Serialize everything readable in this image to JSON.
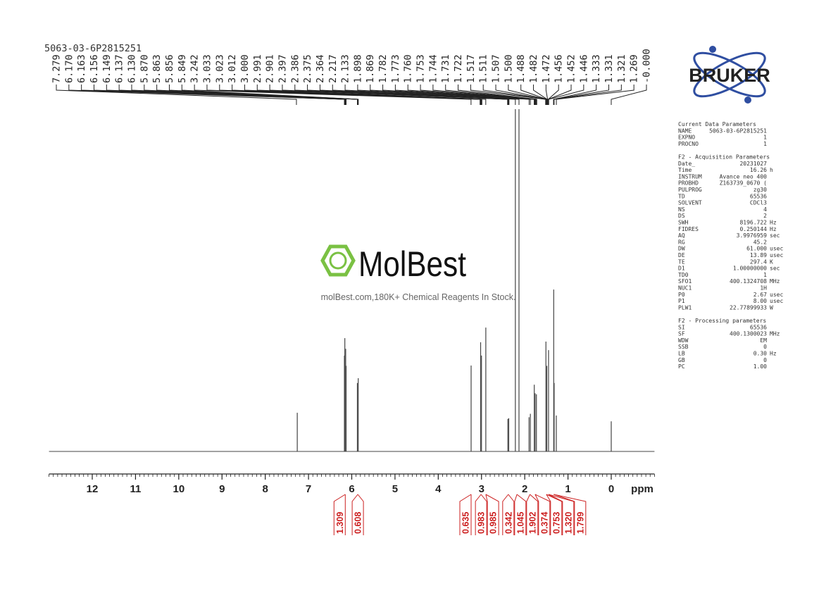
{
  "chart_data": {
    "type": "nmr",
    "title": "5063-03-6P2815251",
    "x_label": "ppm",
    "xlim": [
      13,
      -1
    ],
    "xticks": [
      12,
      11,
      10,
      9,
      8,
      7,
      6,
      5,
      4,
      3,
      2,
      1,
      0
    ],
    "xminor_step": 0.1,
    "ylim": [
      0,
      100
    ],
    "color": "#444444",
    "peaks": {
      "x": [
        7.26,
        6.17,
        6.16,
        6.14,
        6.13,
        5.87,
        5.85,
        3.24,
        3.02,
        3.0,
        2.9,
        2.39,
        2.37,
        2.217,
        2.133,
        1.9,
        1.87,
        1.78,
        1.76,
        1.73,
        1.51,
        1.49,
        1.45,
        1.33,
        1.32,
        1.27,
        0.0
      ],
      "values": [
        11.3,
        28,
        33.1,
        30,
        25,
        20,
        21.4,
        25.1,
        31.9,
        28,
        36.2,
        9.5,
        9.7,
        100,
        100,
        10,
        11,
        19.5,
        17,
        16.7,
        32.1,
        25,
        29.6,
        47.3,
        20,
        10.5,
        8.8
      ]
    },
    "peak_labels": [
      "7.279",
      "6.170",
      "6.163",
      "6.156",
      "6.149",
      "6.137",
      "6.130",
      "5.870",
      "5.863",
      "5.856",
      "5.849",
      "3.242",
      "3.033",
      "3.023",
      "3.012",
      "3.000",
      "2.991",
      "2.901",
      "2.397",
      "2.386",
      "2.375",
      "2.364",
      "2.217",
      "2.133",
      "1.898",
      "1.869",
      "1.782",
      "1.773",
      "1.760",
      "1.753",
      "1.744",
      "1.731",
      "1.722",
      "1.517",
      "1.511",
      "1.507",
      "1.500",
      "1.488",
      "1.482",
      "1.472",
      "1.456",
      "1.452",
      "1.446",
      "1.333",
      "1.331",
      "1.321",
      "1.269",
      "-0.000"
    ],
    "label_color": "#222222",
    "integrals": {
      "x": [
        6.15,
        5.86,
        3.24,
        3.01,
        2.9,
        2.38,
        2.18,
        1.88,
        1.76,
        1.5,
        1.45,
        1.33
      ],
      "labels": [
        "1.309",
        "0.608",
        "0.635",
        "0.983",
        "0.985",
        "0.342",
        "1.045",
        "1.902",
        "0.374",
        "0.753",
        "1.320",
        "1.799"
      ],
      "color": "#cc1f1f"
    }
  },
  "parameters": [
    {
      "title": "Current Data Parameters",
      "rows": [
        [
          "NAME",
          "5063-03-6P2815251"
        ],
        [
          "EXPNO",
          "1"
        ],
        [
          "PROCNO",
          "1"
        ]
      ]
    },
    {
      "title": "F2 - Acquisition Parameters",
      "rows": [
        [
          "Date_",
          "20231027"
        ],
        [
          "Time",
          "16.26",
          "h"
        ],
        [
          "INSTRUM",
          "Avance neo 400"
        ],
        [
          "PROBHD",
          "Z163739_0670 ("
        ],
        [
          "PULPROG",
          "zg30"
        ],
        [
          "TD",
          "65536"
        ],
        [
          "SOLVENT",
          "CDCl3"
        ],
        [
          "NS",
          "4"
        ],
        [
          "DS",
          "2"
        ],
        [
          "SWH",
          "8196.722",
          "Hz"
        ],
        [
          "FIDRES",
          "0.250144",
          "Hz"
        ],
        [
          "AQ",
          "3.9976959",
          "sec"
        ],
        [
          "RG",
          "45.2"
        ],
        [
          "DW",
          "61.000",
          "usec"
        ],
        [
          "DE",
          "13.89",
          "usec"
        ],
        [
          "TE",
          "297.4",
          "K"
        ],
        [
          "D1",
          "1.00000000",
          "sec"
        ],
        [
          "TD0",
          "1"
        ],
        [
          "SFO1",
          "400.1324708",
          "MHz"
        ],
        [
          "NUC1",
          "1H"
        ],
        [
          "P0",
          "2.67",
          "usec"
        ],
        [
          "P1",
          "8.00",
          "usec"
        ],
        [
          "PLW1",
          "22.77899933",
          "W"
        ]
      ]
    },
    {
      "title": "F2 - Processing parameters",
      "rows": [
        [
          "SI",
          "65536"
        ],
        [
          "SF",
          "400.1300023",
          "MHz"
        ],
        [
          "WDW",
          "EM"
        ],
        [
          "SSB",
          "0"
        ],
        [
          "LB",
          "0.30",
          "Hz"
        ],
        [
          "GB",
          "0"
        ],
        [
          "PC",
          "1.00"
        ]
      ]
    }
  ],
  "logos": {
    "bruker": "BRUKER",
    "molbest": "MolBest",
    "tagline": "molBest.com,180K+ Chemical Reagents In Stock."
  }
}
